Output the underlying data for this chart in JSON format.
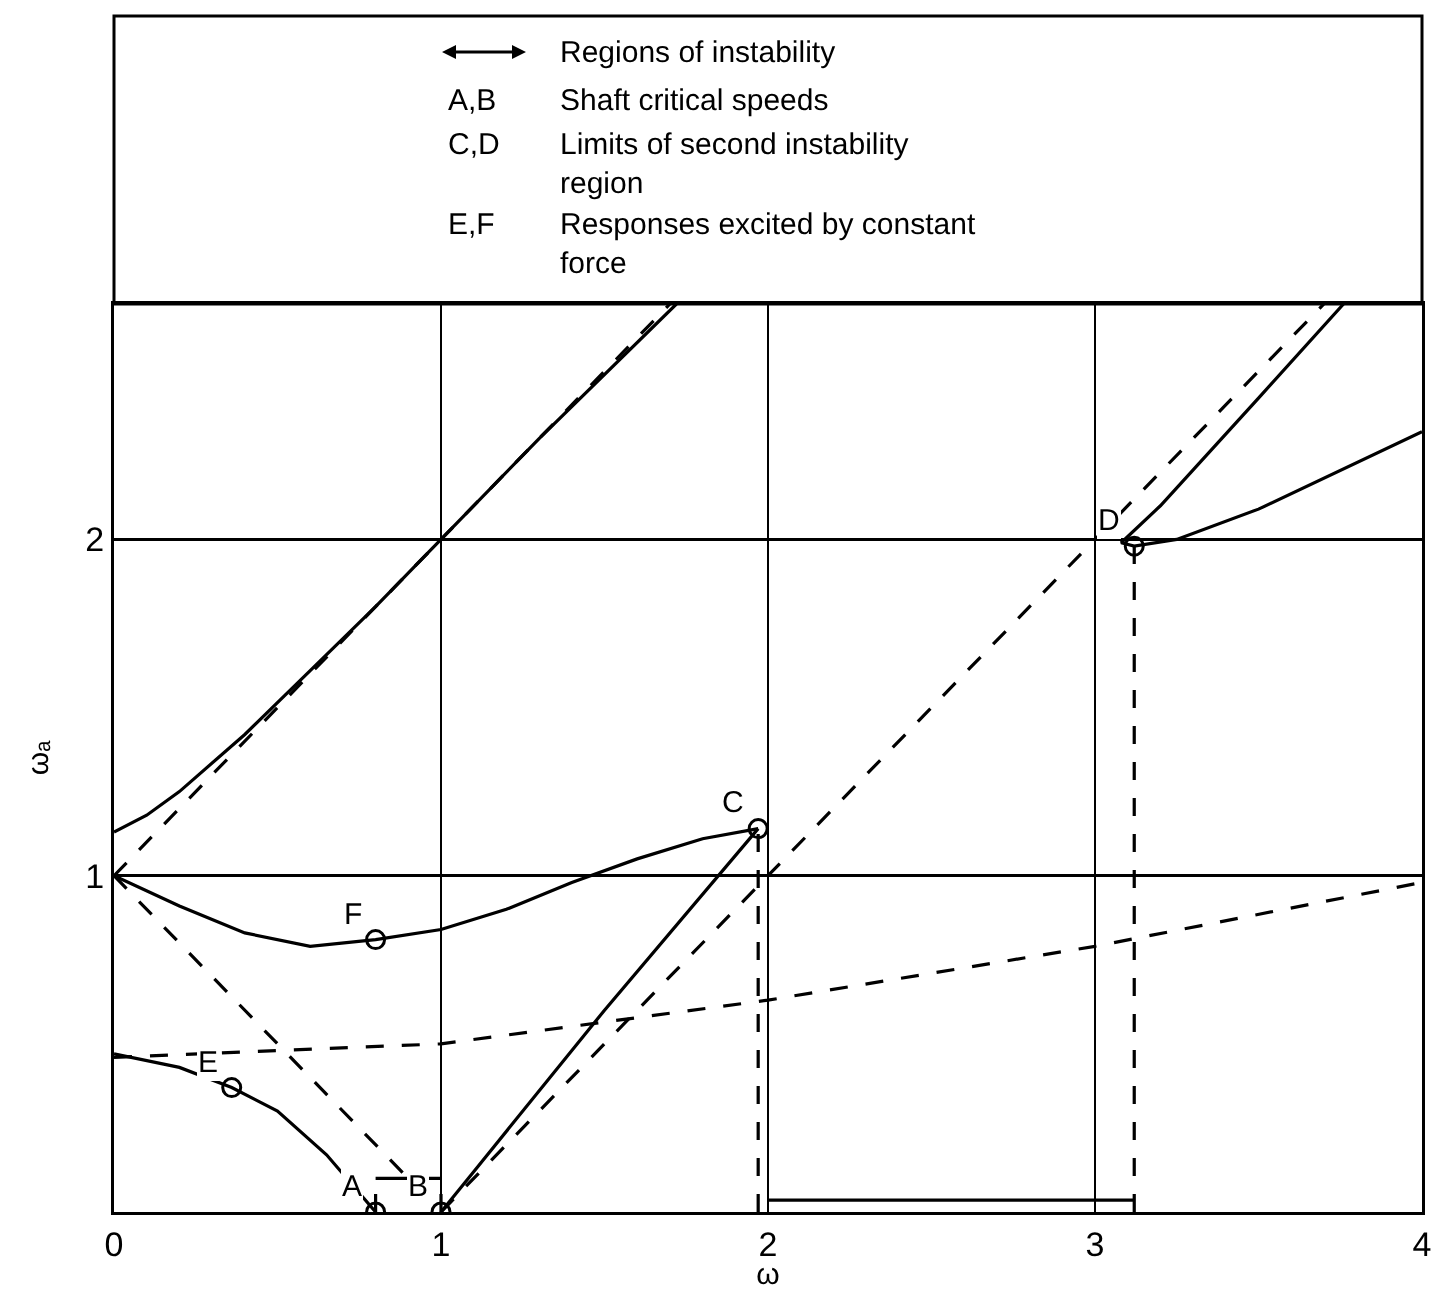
{
  "chart_data": {
    "type": "line",
    "xlabel": "ω",
    "ylabel": "ωₐ",
    "xlim": [
      0,
      4
    ],
    "ylim": [
      0,
      2.7
    ],
    "xticks": [
      0,
      1,
      2,
      3,
      4
    ],
    "yticks": [
      {
        "value": 0,
        "label": null
      },
      1,
      2
    ],
    "grid": true,
    "series": [
      {
        "line_style": "solid",
        "color": "#000000",
        "x": [
          0,
          0.1,
          0.2,
          0.4,
          0.6,
          0.8,
          1.0,
          1.3,
          1.72
        ],
        "values": [
          1.13,
          1.18,
          1.25,
          1.42,
          1.61,
          1.8,
          2.0,
          2.3,
          2.7
        ]
      },
      {
        "type": "line",
        "line_style": "dashed",
        "color": "#000000",
        "x": [
          0,
          1.7
        ],
        "values": [
          1,
          2.7
        ]
      },
      {
        "type": "line",
        "line_style": "dashed",
        "color": "#000000",
        "x": [
          0,
          1
        ],
        "values": [
          1,
          0
        ]
      },
      {
        "type": "line",
        "line_style": "solid",
        "color": "#000000",
        "x": [
          0,
          0.2,
          0.4,
          0.6,
          0.8,
          1.0,
          1.2,
          1.4,
          1.6,
          1.8,
          1.97
        ],
        "values": [
          1,
          0.91,
          0.83,
          0.79,
          0.81,
          0.84,
          0.9,
          0.98,
          1.05,
          1.11,
          1.14
        ]
      },
      {
        "type": "line",
        "line_style": "solid",
        "color": "#000000",
        "x": [
          0,
          0.2,
          0.36,
          0.5,
          0.65,
          0.8
        ],
        "values": [
          0.47,
          0.43,
          0.37,
          0.3,
          0.17,
          0
        ]
      },
      {
        "type": "line",
        "line_style": "solid",
        "color": "#000000",
        "x": [
          1,
          1.1,
          1.5,
          1.97
        ],
        "values": [
          0,
          0.12,
          0.6,
          1.14
        ]
      },
      {
        "type": "line",
        "line_style": "dashed",
        "color": "#000000",
        "x": [
          1,
          3.7
        ],
        "values": [
          0,
          2.7
        ]
      },
      {
        "type": "line",
        "line_style": "solid",
        "color": "#000000",
        "x": [
          3.76,
          3.5,
          3.2,
          3.08,
          3.12,
          3.25,
          3.5,
          4
        ],
        "values": [
          2.7,
          2.42,
          2.1,
          1.99,
          1.98,
          2.0,
          2.09,
          2.32
        ]
      },
      {
        "type": "line",
        "line_style": "dashed",
        "color": "#000000",
        "x": [
          0,
          1,
          2,
          3,
          4
        ],
        "values": [
          0.46,
          0.5,
          0.63,
          0.79,
          0.98
        ]
      },
      {
        "type": "line",
        "line_style": "dashed",
        "color": "#000000",
        "x": [
          0.8,
          0.8
        ],
        "values": [
          0,
          0.09
        ]
      },
      {
        "type": "line",
        "line_style": "dashed",
        "color": "#000000",
        "x": [
          1,
          1
        ],
        "values": [
          0,
          0.09
        ]
      },
      {
        "type": "line",
        "line_style": "solid",
        "color": "#000000",
        "x": [
          0.8,
          1
        ],
        "values": [
          0.1,
          0.1
        ]
      },
      {
        "type": "line",
        "line_style": "dashed",
        "color": "#000000",
        "x": [
          1.97,
          1.97
        ],
        "values": [
          0,
          1.14
        ]
      },
      {
        "type": "line",
        "line_style": "dashed",
        "color": "#000000",
        "x": [
          3.12,
          3.12
        ],
        "values": [
          0,
          1.98
        ]
      },
      {
        "type": "line",
        "line_style": "solid",
        "color": "#000000",
        "x": [
          2,
          3.12
        ],
        "values": [
          0.035,
          0.035
        ]
      },
      {
        "type": "scatter",
        "marker": "circle",
        "color": "#000000",
        "x": [
          0.8,
          1,
          1.97,
          3.12,
          0.36,
          0.8
        ],
        "values": [
          0,
          0,
          1.14,
          1.98,
          0.37,
          0.81
        ]
      }
    ],
    "annotations": [
      "Regions of instability",
      "A,B",
      "Shaft critical speeds",
      "C,D",
      "Limits of second instability\nregion",
      "E,F",
      "Responses excited by constant\nforce",
      {
        "text": "A",
        "x": 0.8,
        "y": 0
      },
      {
        "text": "B",
        "x": 1,
        "y": 0
      },
      {
        "text": "C",
        "x": 1.97,
        "y": 1.14
      },
      {
        "text": "D",
        "x": 3.12,
        "y": 1.98
      },
      {
        "text": "E",
        "x": 0.36,
        "y": 0.37
      },
      {
        "text": "F",
        "x": 0.8,
        "y": 0.81
      }
    ]
  }
}
